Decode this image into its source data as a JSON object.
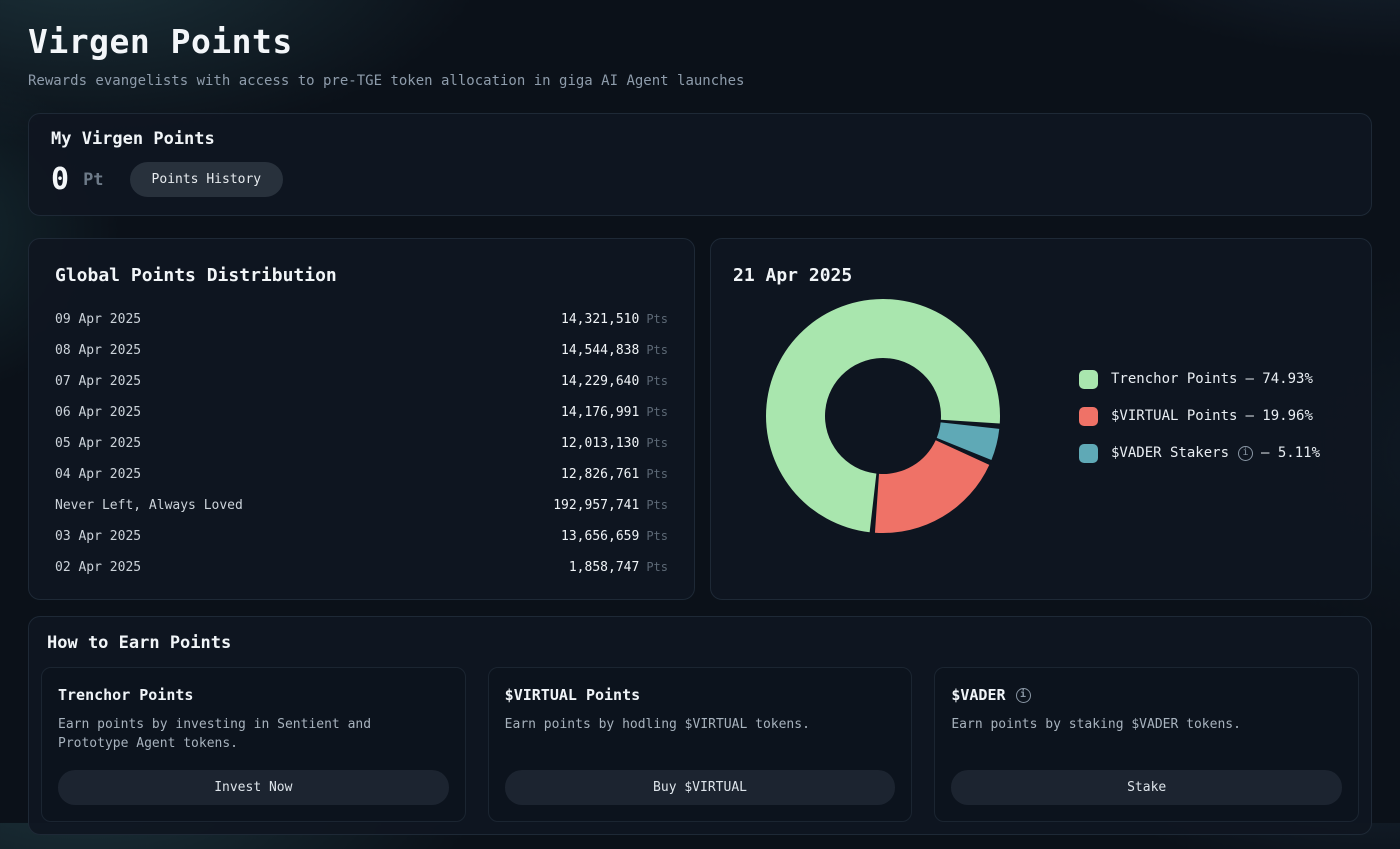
{
  "page": {
    "title": "Virgen Points",
    "subtitle": "Rewards evangelists with access to pre-TGE token allocation in giga AI Agent launches"
  },
  "my_points": {
    "heading": "My Virgen Points",
    "value": "0",
    "unit": "Pt",
    "history_button": "Points History"
  },
  "distribution": {
    "heading": "Global Points Distribution",
    "unit": "Pts",
    "rows": [
      {
        "label": "09 Apr 2025",
        "value": "14,321,510"
      },
      {
        "label": "08 Apr 2025",
        "value": "14,544,838"
      },
      {
        "label": "07 Apr 2025",
        "value": "14,229,640"
      },
      {
        "label": "06 Apr 2025",
        "value": "14,176,991"
      },
      {
        "label": "05 Apr 2025",
        "value": "12,013,130"
      },
      {
        "label": "04 Apr 2025",
        "value": "12,826,761"
      },
      {
        "label": "Never Left, Always Loved",
        "value": "192,957,741"
      },
      {
        "label": "03 Apr 2025",
        "value": "13,656,659"
      },
      {
        "label": "02 Apr 2025",
        "value": "1,858,747"
      }
    ]
  },
  "chart_data": {
    "type": "pie",
    "title": "21 Apr 2025",
    "donut": true,
    "inner_radius_ratio": 0.49,
    "start_angle_deg": 95,
    "direction": "clockwise",
    "legend_position": "right",
    "slices": [
      {
        "label": "Trenchor Points",
        "percent": 74.93,
        "color": "#a9e6ae",
        "has_info": false
      },
      {
        "label": "$VIRTUAL Points",
        "percent": 19.96,
        "color": "#ef7267",
        "has_info": false
      },
      {
        "label": "$VADER Stakers",
        "percent": 5.11,
        "color": "#5fa9b6",
        "has_info": true
      }
    ]
  },
  "earn": {
    "heading": "How to Earn Points",
    "cards": [
      {
        "title": "Trenchor Points",
        "has_info": false,
        "description": "Earn points by investing in Sentient and Prototype Agent tokens.",
        "button": "Invest Now"
      },
      {
        "title": "$VIRTUAL Points",
        "has_info": false,
        "description": "Earn points by hodling $VIRTUAL tokens.",
        "button": "Buy $VIRTUAL"
      },
      {
        "title": "$VADER",
        "has_info": true,
        "description": "Earn points by staking $VADER tokens.",
        "button": "Stake"
      }
    ]
  },
  "icons": {
    "info": "i"
  },
  "colors": {
    "green": "#a9e6ae",
    "salmon": "#ef7267",
    "teal": "#5fa9b6",
    "card_bg": "#0f1621",
    "page_bg": "#0b1119"
  }
}
